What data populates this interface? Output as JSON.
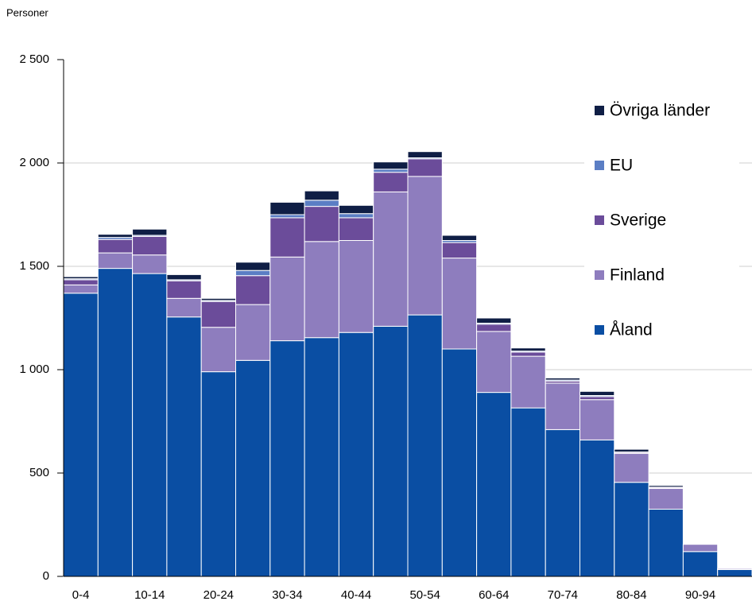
{
  "chart_data": {
    "type": "bar",
    "stacked": true,
    "y_label": "Personer",
    "categories": [
      "0-4",
      null,
      "10-14",
      null,
      "20-24",
      null,
      "30-34",
      null,
      "40-44",
      null,
      "50-54",
      null,
      "60-64",
      null,
      "70-74",
      null,
      "80-84",
      null,
      "90-94",
      null
    ],
    "series": [
      {
        "name": "Åland",
        "color": "#0a4ea3",
        "values": [
          1370,
          1490,
          1465,
          1255,
          990,
          1045,
          1140,
          1155,
          1180,
          1210,
          1265,
          1100,
          890,
          815,
          710,
          660,
          455,
          325,
          120,
          33
        ]
      },
      {
        "name": "Finland",
        "color": "#8e7dbe",
        "values": [
          40,
          75,
          90,
          90,
          215,
          270,
          405,
          465,
          445,
          650,
          670,
          440,
          295,
          250,
          225,
          195,
          140,
          100,
          35,
          5
        ]
      },
      {
        "name": "Sverige",
        "color": "#6b4c9a",
        "values": [
          25,
          65,
          90,
          85,
          125,
          140,
          190,
          170,
          110,
          95,
          85,
          75,
          35,
          20,
          10,
          15,
          5,
          5,
          0,
          0
        ]
      },
      {
        "name": "EU",
        "color": "#5b7ec4",
        "values": [
          5,
          10,
          5,
          5,
          5,
          25,
          15,
          30,
          20,
          15,
          5,
          10,
          5,
          5,
          5,
          5,
          2,
          2,
          0,
          0
        ]
      },
      {
        "name": "Övriga länder",
        "color": "#0f1e45",
        "values": [
          10,
          15,
          30,
          25,
          10,
          40,
          60,
          45,
          40,
          35,
          30,
          25,
          25,
          15,
          10,
          20,
          13,
          8,
          0,
          0
        ]
      }
    ],
    "ylim": [
      0,
      2500
    ],
    "yticks": [
      0,
      500,
      {
        "value": 1000,
        "label": "1 000"
      },
      {
        "value": 1500,
        "label": "1 500"
      },
      {
        "value": 2000,
        "label": "2 000"
      },
      {
        "value": 2500,
        "label": "2 500"
      }
    ],
    "grid": true,
    "legend": "right"
  }
}
